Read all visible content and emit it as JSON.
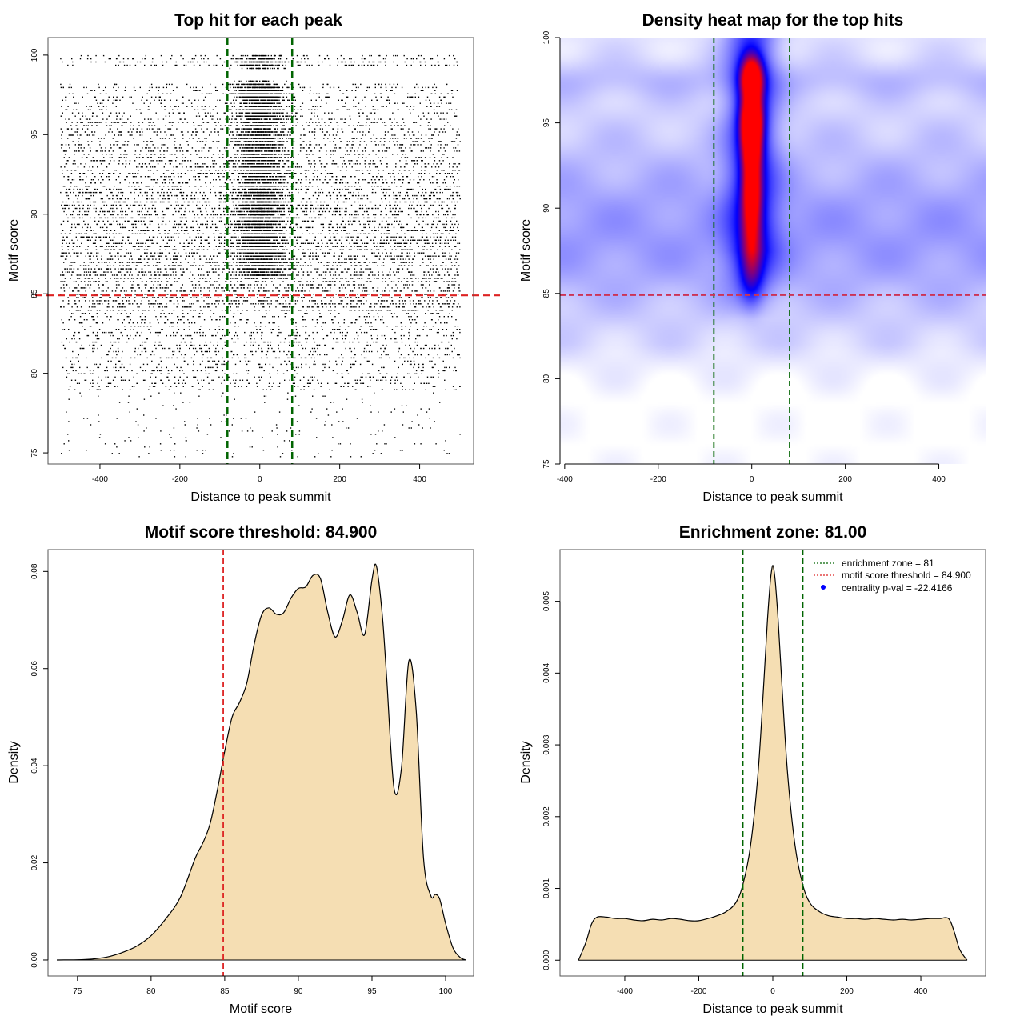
{
  "chart_data": [
    {
      "type": "scatter",
      "title": "Top hit for each peak",
      "xlabel": "Distance to peak summit",
      "ylabel": "Motif score",
      "xlim": [
        -530,
        535
      ],
      "ylim": [
        74.3,
        101.1
      ],
      "xticks": [
        -400,
        -200,
        0,
        200,
        400
      ],
      "yticks": [
        75,
        80,
        85,
        90,
        95,
        100
      ],
      "xtick_labels": [
        "-400",
        "-200",
        "0",
        "200",
        "400"
      ],
      "ytick_labels": [
        "75",
        "80",
        "85",
        "90",
        "95",
        "100"
      ],
      "vlines": [
        -81,
        81
      ],
      "hline": 84.9,
      "colors": {
        "points": "#000000",
        "zone": "#006400",
        "threshold": "#dd2222"
      },
      "point_model": {
        "n_uniform": 9000,
        "n_central": 5000,
        "x_range": [
          -500,
          500
        ],
        "central_sd": 30,
        "score_bands": [
          {
            "range": [
              74.8,
              79
            ],
            "weight": 0.02
          },
          {
            "range": [
              79,
              84
            ],
            "weight": 0.16
          },
          {
            "range": [
              84,
              88
            ],
            "weight": 0.27
          },
          {
            "range": [
              88,
              92
            ],
            "weight": 0.25
          },
          {
            "range": [
              92,
              96
            ],
            "weight": 0.2
          },
          {
            "range": [
              96,
              98.3
            ],
            "weight": 0.07
          },
          {
            "range": [
              99.3,
              100
            ],
            "weight": 0.03
          }
        ]
      }
    },
    {
      "type": "heatmap",
      "title": "Density heat map for the top hits",
      "xlabel": "Distance to peak summit",
      "ylabel": "Motif score",
      "xlim": [
        -410,
        500
      ],
      "ylim": [
        75,
        100
      ],
      "xticks": [
        -400,
        -200,
        0,
        200,
        400
      ],
      "yticks": [
        75,
        80,
        85,
        90,
        95,
        100
      ],
      "xtick_labels": [
        "-400",
        "-200",
        "0",
        "200",
        "400"
      ],
      "ytick_labels": [
        "75",
        "80",
        "85",
        "90",
        "95",
        "100"
      ],
      "vlines": [
        -81,
        81
      ],
      "hline": 84.9,
      "colormap": [
        "#ffffff",
        "#0000ff",
        "#ff0000"
      ],
      "density_blobs": [
        {
          "x": 0,
          "y": 97.6,
          "sx": 16,
          "sy": 0.9,
          "w": 1.0
        },
        {
          "x": 0,
          "y": 95.3,
          "sx": 16,
          "sy": 1.0,
          "w": 1.0
        },
        {
          "x": 0,
          "y": 93.6,
          "sx": 15,
          "sy": 1.1,
          "w": 0.75
        },
        {
          "x": 0,
          "y": 91.1,
          "sx": 14,
          "sy": 1.3,
          "w": 0.7
        },
        {
          "x": 0,
          "y": 88.4,
          "sx": 15,
          "sy": 1.5,
          "w": 0.42
        },
        {
          "x": 0,
          "y": 86.0,
          "sx": 17,
          "sy": 1.2,
          "w": 0.22
        }
      ]
    },
    {
      "type": "area",
      "title": "Motif score threshold: 84.900",
      "xlabel": "Motif score",
      "ylabel": "Density",
      "xlim": [
        73.0,
        101.9
      ],
      "ylim": [
        -0.0033,
        0.0845
      ],
      "xticks": [
        75,
        80,
        85,
        90,
        95,
        100
      ],
      "yticks": [
        0.0,
        0.02,
        0.04,
        0.06,
        0.08
      ],
      "xtick_labels": [
        "75",
        "80",
        "85",
        "90",
        "95",
        "100"
      ],
      "ytick_labels": [
        "0.00",
        "0.02",
        "0.04",
        "0.06",
        "0.08"
      ],
      "vlines": [
        84.9
      ],
      "x": [
        73.6,
        75,
        76,
        77,
        78,
        79,
        80,
        81,
        82,
        83,
        83.5,
        84,
        84.5,
        85,
        85.5,
        86,
        86.5,
        87,
        87.5,
        88,
        88.5,
        89,
        89.5,
        90,
        90.5,
        91,
        91.5,
        92,
        92.5,
        93,
        93.5,
        94,
        94.5,
        95,
        95.3,
        95.7,
        96,
        96.5,
        97,
        97.5,
        98,
        98.5,
        99,
        99.3,
        99.6,
        100,
        100.5,
        101,
        101.4
      ],
      "y": [
        0.0,
        5e-05,
        0.0002,
        0.0006,
        0.0015,
        0.0028,
        0.005,
        0.0085,
        0.013,
        0.021,
        0.024,
        0.028,
        0.035,
        0.043,
        0.05,
        0.053,
        0.057,
        0.065,
        0.071,
        0.0725,
        0.0712,
        0.0715,
        0.0745,
        0.0765,
        0.0768,
        0.0792,
        0.0785,
        0.0715,
        0.0665,
        0.07,
        0.0752,
        0.0715,
        0.067,
        0.0783,
        0.0811,
        0.071,
        0.058,
        0.0353,
        0.0395,
        0.0615,
        0.0515,
        0.021,
        0.0132,
        0.0135,
        0.0125,
        0.0075,
        0.0025,
        0.0005,
        0.0
      ]
    },
    {
      "type": "area",
      "title": "Enrichment zone: 81.00",
      "xlabel": "Distance to peak summit",
      "ylabel": "Density",
      "xlim": [
        -575,
        575
      ],
      "ylim": [
        -0.00022,
        0.00572
      ],
      "xticks": [
        -400,
        -200,
        0,
        200,
        400
      ],
      "yticks": [
        0.0,
        0.001,
        0.002,
        0.003,
        0.004,
        0.005
      ],
      "xtick_labels": [
        "-400",
        "-200",
        "0",
        "200",
        "400"
      ],
      "ytick_labels": [
        "0.000",
        "0.001",
        "0.002",
        "0.003",
        "0.004",
        "0.005"
      ],
      "vlines": [
        -81,
        81
      ],
      "x": [
        -525,
        -505,
        -490,
        -475,
        -450,
        -425,
        -400,
        -375,
        -350,
        -325,
        -300,
        -275,
        -250,
        -225,
        -200,
        -175,
        -150,
        -125,
        -100,
        -81,
        -60,
        -40,
        -25,
        -15,
        -8,
        -4,
        0,
        4,
        8,
        15,
        25,
        40,
        60,
        81,
        100,
        125,
        150,
        175,
        200,
        225,
        250,
        275,
        300,
        325,
        350,
        375,
        400,
        425,
        450,
        475,
        490,
        505,
        525
      ],
      "y": [
        0.0,
        0.00025,
        0.0005,
        0.0006,
        0.0006,
        0.00058,
        0.00058,
        0.00056,
        0.00055,
        0.00057,
        0.00056,
        0.00058,
        0.00057,
        0.00055,
        0.00055,
        0.00058,
        0.00062,
        0.00068,
        0.0008,
        0.00105,
        0.0016,
        0.0026,
        0.0038,
        0.0047,
        0.0052,
        0.0054,
        0.0055,
        0.0054,
        0.0052,
        0.0047,
        0.0038,
        0.0026,
        0.0016,
        0.00105,
        0.0008,
        0.00068,
        0.00062,
        0.0006,
        0.00058,
        0.00058,
        0.00057,
        0.00058,
        0.00057,
        0.00056,
        0.00057,
        0.00056,
        0.00057,
        0.00058,
        0.00058,
        0.00058,
        0.0004,
        0.00015,
        0.0
      ],
      "legend": {
        "position": "top-right",
        "entries": [
          {
            "label": "enrichment zone = 81",
            "style": "dotted-line",
            "color": "#006400"
          },
          {
            "label": "motif score threshold = 84.900",
            "style": "dotted-line",
            "color": "#dd2222"
          },
          {
            "label": "centrality p-val = -22.4166",
            "style": "point",
            "color": "#0000ff"
          }
        ]
      }
    }
  ],
  "style": {
    "fill_color": "#f5deb3",
    "zone_line_color": "#006400",
    "threshold_line_color": "#dd2222"
  }
}
